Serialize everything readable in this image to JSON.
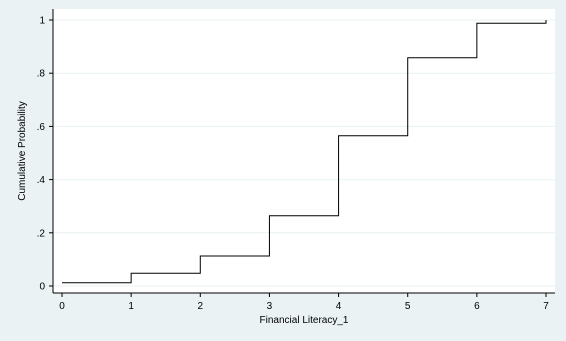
{
  "chart_data": {
    "type": "line",
    "step": true,
    "xlabel": "Financial Literacy_1",
    "ylabel": "Cumulative Probability",
    "xlim": [
      0,
      7
    ],
    "ylim": [
      0,
      1
    ],
    "xticks": [
      0,
      1,
      2,
      3,
      4,
      5,
      6,
      7
    ],
    "xtick_labels": [
      "0",
      "1",
      "2",
      "3",
      "4",
      "5",
      "6",
      "7"
    ],
    "yticks": [
      0,
      0.2,
      0.4,
      0.6,
      0.8,
      1
    ],
    "ytick_labels": [
      "0",
      ".2",
      ".4",
      ".6",
      ".8",
      "1"
    ],
    "grid": true,
    "series": [
      {
        "x": [
          0,
          1,
          2,
          3,
          4,
          5,
          6,
          7
        ],
        "y": [
          0.012,
          0.048,
          0.113,
          0.264,
          0.565,
          0.858,
          0.988,
          1.0
        ]
      }
    ],
    "colors": {
      "background": "#eaf2f3",
      "plot_background": "#ffffff",
      "grid": "#eaf2f3",
      "line": "#000000"
    }
  }
}
